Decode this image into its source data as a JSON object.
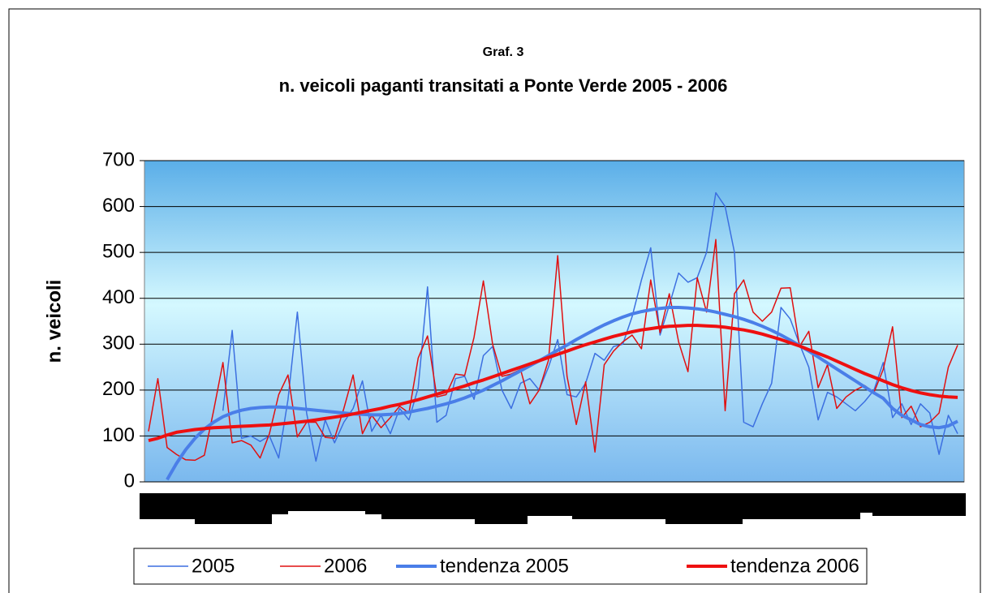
{
  "chart_data": {
    "type": "line",
    "title": "Graf. 3",
    "subtitle": "n. veicoli paganti transitati a Ponte Verde 2005 - 2006",
    "y_label": "n. veicoli",
    "categories": [
      null,
      null,
      null,
      null,
      null,
      null,
      null,
      null,
      null,
      null,
      null,
      null,
      null,
      null,
      null,
      null,
      null,
      null,
      null,
      null,
      null,
      null,
      null,
      null,
      null,
      null,
      null,
      null,
      null,
      null,
      null,
      null,
      null,
      null,
      null,
      null,
      null,
      null,
      null,
      null,
      null,
      null,
      null,
      null,
      null,
      null,
      null,
      null,
      null,
      null,
      null,
      null,
      null,
      null,
      null,
      null,
      null,
      null,
      null,
      null,
      null,
      null,
      null,
      null,
      null,
      null,
      null,
      null,
      null,
      null,
      null,
      null,
      null,
      null,
      null,
      null,
      null,
      null,
      null,
      null,
      null,
      null,
      null,
      null,
      null,
      null,
      null,
      null
    ],
    "ylim": [
      0,
      700
    ],
    "yticks": [
      0,
      100,
      200,
      300,
      400,
      500,
      600,
      700
    ],
    "grid": true,
    "legend": "bottom",
    "series": [
      {
        "name": "2005",
        "color": "#3c6fe0",
        "width": 1.5,
        "values": [
          null,
          null,
          null,
          null,
          null,
          null,
          null,
          null,
          155,
          330,
          95,
          100,
          88,
          100,
          52,
          180,
          370,
          150,
          45,
          135,
          85,
          130,
          160,
          220,
          110,
          145,
          105,
          160,
          135,
          205,
          425,
          130,
          145,
          225,
          230,
          180,
          275,
          295,
          200,
          160,
          215,
          225,
          200,
          250,
          310,
          190,
          185,
          215,
          280,
          265,
          295,
          300,
          360,
          440,
          510,
          320,
          385,
          455,
          435,
          445,
          500,
          630,
          600,
          500,
          130,
          120,
          170,
          215,
          380,
          355,
          300,
          250,
          135,
          195,
          185,
          170,
          155,
          175,
          200,
          260,
          140,
          170,
          125,
          170,
          150,
          60,
          145,
          105
        ]
      },
      {
        "name": "2006",
        "color": "#e01010",
        "width": 1.5,
        "values": [
          110,
          225,
          75,
          60,
          48,
          47,
          58,
          155,
          260,
          85,
          90,
          80,
          52,
          105,
          190,
          233,
          98,
          130,
          130,
          97,
          95,
          160,
          233,
          105,
          145,
          118,
          140,
          165,
          150,
          270,
          318,
          185,
          190,
          235,
          232,
          315,
          438,
          300,
          230,
          235,
          245,
          170,
          200,
          265,
          493,
          230,
          125,
          218,
          65,
          255,
          285,
          305,
          320,
          290,
          440,
          325,
          410,
          305,
          240,
          445,
          370,
          528,
          155,
          410,
          440,
          370,
          350,
          370,
          422,
          423,
          295,
          328,
          205,
          255,
          160,
          185,
          200,
          210,
          195,
          245,
          338,
          140,
          165,
          120,
          130,
          150,
          250,
          298
        ]
      },
      {
        "name": "tendenza 2005",
        "color": "#4a7ee8",
        "width": 4,
        "values": [
          null,
          null,
          5,
          40,
          70,
          95,
          115,
          130,
          142,
          150,
          156,
          160,
          162,
          163,
          163,
          162,
          160,
          158,
          156,
          154,
          152,
          150,
          148,
          147,
          146,
          146,
          147,
          149,
          152,
          156,
          160,
          165,
          170,
          176,
          183,
          191,
          200,
          210,
          220,
          231,
          242,
          253,
          264,
          275,
          287,
          298,
          310,
          321,
          332,
          342,
          351,
          359,
          366,
          371,
          375,
          378,
          380,
          380,
          379,
          377,
          374,
          370,
          365,
          360,
          354,
          347,
          339,
          330,
          320,
          309,
          297,
          285,
          272,
          259,
          246,
          233,
          220,
          207,
          194,
          182,
          160,
          145,
          135,
          125,
          120,
          118,
          122,
          132
        ]
      },
      {
        "name": "tendenza 2006",
        "color": "#ee1010",
        "width": 4,
        "values": [
          90,
          95,
          102,
          108,
          111,
          114,
          116,
          118,
          119,
          120,
          121,
          122,
          123,
          124,
          126,
          128,
          130,
          132,
          135,
          138,
          141,
          144,
          148,
          152,
          156,
          160,
          165,
          169,
          174,
          179,
          185,
          191,
          197,
          203,
          209,
          216,
          222,
          229,
          236,
          243,
          250,
          257,
          264,
          271,
          278,
          285,
          292,
          299,
          305,
          311,
          317,
          322,
          327,
          331,
          334,
          337,
          339,
          340,
          341,
          341,
          340,
          339,
          337,
          334,
          331,
          327,
          322,
          316,
          310,
          303,
          296,
          288,
          280,
          272,
          263,
          254,
          245,
          236,
          228,
          220,
          212,
          205,
          199,
          194,
          190,
          187,
          185,
          184
        ]
      }
    ]
  }
}
